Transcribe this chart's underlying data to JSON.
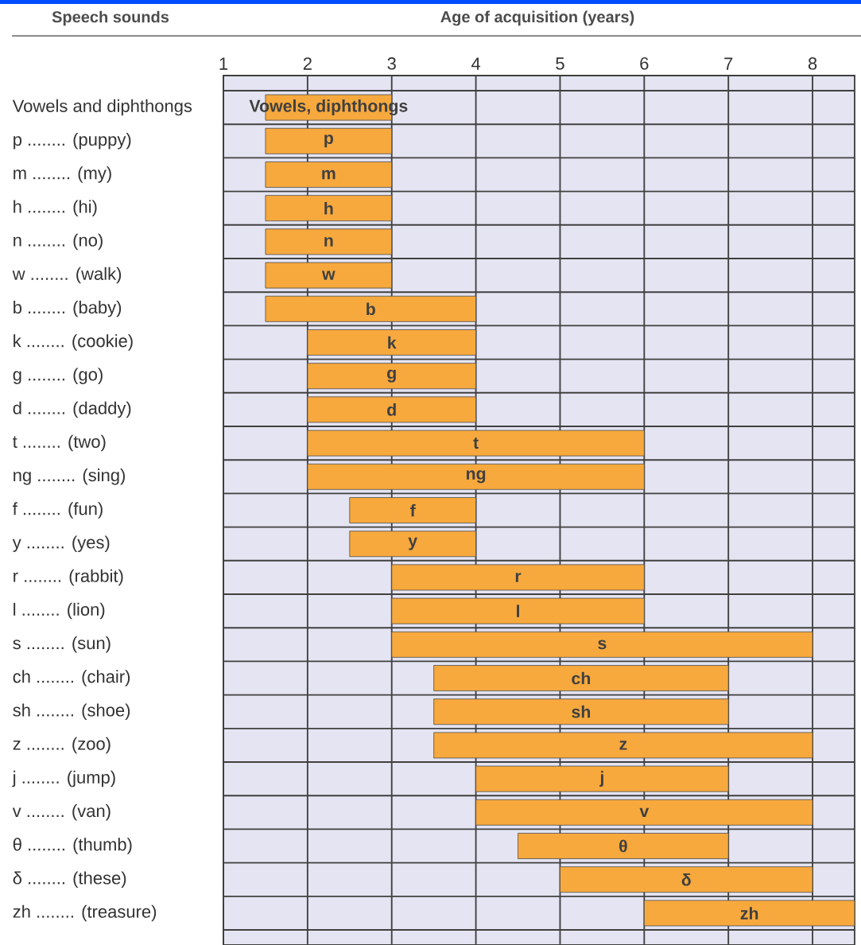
{
  "chart_data": {
    "type": "bar",
    "orientation": "horizontal",
    "xlabel": "Age of acquisition (years)",
    "ylabel": "Speech sounds",
    "categories": [
      "Vowels and diphthongs",
      "p ........ (puppy)",
      "m ........ (my)",
      "h ........ (hi)",
      "n ........ (no)",
      "w ........ (walk)",
      "b ........ (baby)",
      "k ........ (cookie)",
      "g ........ (go)",
      "d ........ (daddy)",
      "t ........ (two)",
      "ng ........ (sing)",
      "f ........ (fun)",
      "y ........ (yes)",
      "r ........ (rabbit)",
      "l ........ (lion)",
      "s ........ (sun)",
      "ch ........ (chair)",
      "sh ........ (shoe)",
      "z ........ (zoo)",
      "j ........ (jump)",
      "v ........ (van)",
      "θ ........ (thumb)",
      "δ ........ (these)",
      "zh ........ (treasure)"
    ],
    "base": [
      1.5,
      1.5,
      1.5,
      1.5,
      1.5,
      1.5,
      1.5,
      2,
      2,
      2,
      2,
      2,
      2.5,
      2.5,
      3,
      3,
      3,
      3.5,
      3.5,
      3.5,
      4,
      4,
      4.5,
      5,
      6
    ],
    "values": [
      1.5,
      1.5,
      1.5,
      1.5,
      1.5,
      1.5,
      2.5,
      2,
      2,
      2,
      4,
      4,
      1.5,
      1.5,
      3,
      3,
      5,
      3.5,
      3.5,
      4.5,
      3,
      4,
      2.5,
      3,
      2.5
    ],
    "value_labels": [
      "Vowels, diphthongs",
      "p",
      "m",
      "h",
      "n",
      "w",
      "b",
      "k",
      "g",
      "d",
      "t",
      "ng",
      "f",
      "y",
      "r",
      "l",
      "s",
      "ch",
      "sh",
      "z",
      "j",
      "v",
      "θ",
      "δ",
      "zh"
    ],
    "color": "#f7a93e",
    "xlim": [
      1,
      8.5
    ],
    "xticks": [
      1,
      2,
      3,
      4,
      5,
      6,
      7,
      8
    ],
    "grid": true
  }
}
